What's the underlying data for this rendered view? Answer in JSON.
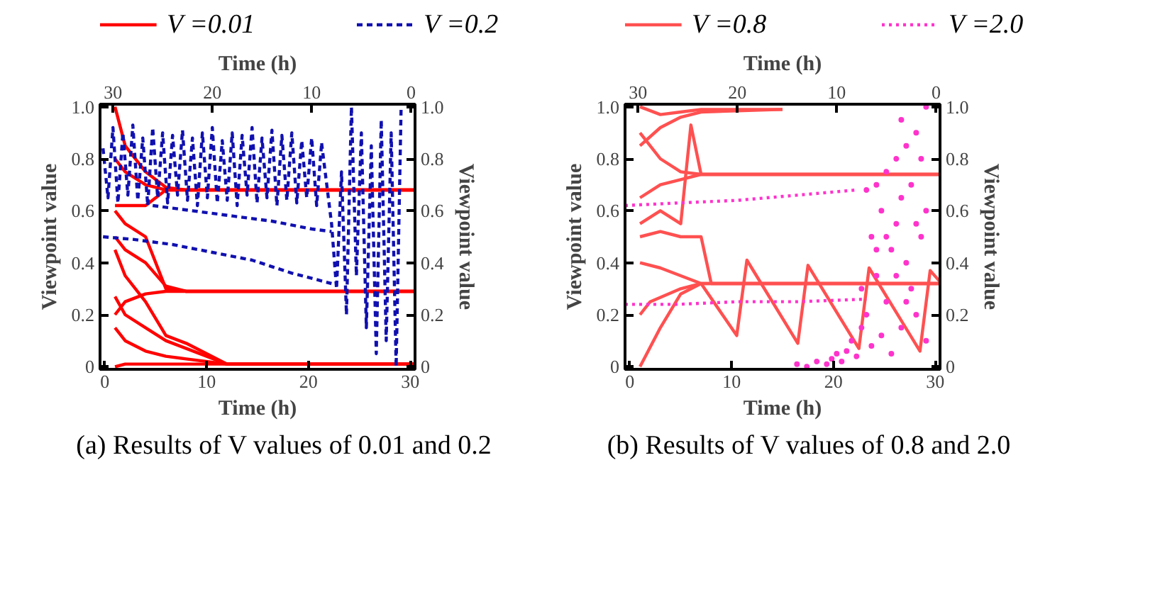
{
  "chart_data": [
    {
      "type": "line",
      "xlabel": "Time (h)",
      "x2label": "Time (h)",
      "ylabel": "Viewpoint value",
      "y2label": "Viewpoint value",
      "xlim": [
        -0.47,
        30.47
      ],
      "xticks": [
        0,
        10,
        20,
        30
      ],
      "x2lim": [
        31.3,
        -0.4
      ],
      "x2ticks": [
        30,
        20,
        10,
        0
      ],
      "ylim": [
        -0.01,
        1.01
      ],
      "yticks": [
        0,
        0.2,
        0.4,
        0.6,
        0.8,
        {
          "value": 1,
          "label": "1.0"
        }
      ],
      "y2lim": [
        -0.01,
        1.01
      ],
      "y2ticks": [
        0,
        0.2,
        0.4,
        0.6,
        0.8,
        {
          "value": 1,
          "label": "1.0"
        }
      ],
      "legend": "top",
      "grid": false,
      "annotations": [
        "(a) Results of V values of 0.01 and 0.2"
      ],
      "series": [
        {
          "name": "V =0.01",
          "color": "#ff0000",
          "line_style": "solid",
          "x": [
            1,
            2,
            4,
            6,
            8,
            12,
            30.4
          ],
          "values": [
            1.0,
            0.85,
            0.75,
            0.69,
            0.68,
            0.68,
            0.68
          ]
        },
        {
          "color": "#ff0000",
          "line_style": "solid",
          "x": [
            1,
            2,
            4,
            6,
            8,
            12,
            30.4
          ],
          "values": [
            0.62,
            0.62,
            0.62,
            0.68,
            0.68,
            0.68,
            0.68
          ]
        },
        {
          "color": "#ff0000",
          "line_style": "solid",
          "x": [
            1,
            2,
            4,
            6,
            8,
            12,
            30.4
          ],
          "values": [
            0.8,
            0.75,
            0.7,
            0.68,
            0.68,
            0.68,
            0.68
          ]
        },
        {
          "color": "#ff0000",
          "line_style": "solid",
          "x": [
            1,
            2,
            4,
            6,
            8,
            12,
            30.4
          ],
          "values": [
            0.6,
            0.55,
            0.5,
            0.3,
            0.29,
            0.29,
            0.29
          ]
        },
        {
          "color": "#ff0000",
          "line_style": "solid",
          "x": [
            1,
            2,
            4,
            6,
            8,
            12,
            30.4
          ],
          "values": [
            0.5,
            0.45,
            0.4,
            0.31,
            0.29,
            0.29,
            0.29
          ]
        },
        {
          "color": "#ff0000",
          "line_style": "solid",
          "x": [
            1,
            2,
            4,
            6,
            8,
            12,
            30.4
          ],
          "values": [
            0.2,
            0.25,
            0.28,
            0.29,
            0.29,
            0.29,
            0.29
          ]
        },
        {
          "color": "#ff0000",
          "line_style": "solid",
          "x": [
            1,
            2,
            4,
            6,
            8,
            12,
            30.4
          ],
          "values": [
            0.45,
            0.35,
            0.25,
            0.12,
            0.09,
            0.01,
            0.01
          ]
        },
        {
          "color": "#ff0000",
          "line_style": "solid",
          "x": [
            1,
            2,
            4,
            6,
            8,
            12,
            30.4
          ],
          "values": [
            0.27,
            0.2,
            0.15,
            0.1,
            0.07,
            0.01,
            0.01
          ]
        },
        {
          "color": "#ff0000",
          "line_style": "solid",
          "x": [
            1,
            2,
            4,
            6,
            8,
            12,
            30.4
          ],
          "values": [
            0.15,
            0.1,
            0.06,
            0.04,
            0.03,
            0.01,
            0.01
          ]
        },
        {
          "color": "#ff0000",
          "line_style": "solid",
          "x": [
            1,
            2,
            4,
            6,
            8,
            12,
            30.4
          ],
          "values": [
            0.0,
            0.01,
            0.01,
            0.01,
            0.01,
            0.01,
            0.01
          ]
        },
        {
          "name": "V =0.2",
          "color": "#1010b0",
          "line_style": "dashed",
          "axis": "x2",
          "x": [
            31,
            28,
            24,
            20,
            16,
            12,
            9,
            8
          ],
          "values": [
            0.5,
            0.49,
            0.47,
            0.44,
            0.41,
            0.36,
            0.33,
            0.32
          ]
        },
        {
          "color": "#1010b0",
          "line_style": "dashed",
          "axis": "x2",
          "x": [
            26,
            22,
            18,
            14,
            10,
            8
          ],
          "values": [
            0.62,
            0.6,
            0.58,
            0.56,
            0.53,
            0.52
          ]
        },
        {
          "color": "#1010b0",
          "line_style": "dashed",
          "axis": "x2",
          "x": [
            31,
            30.5,
            30,
            29.5,
            29,
            28.5,
            28,
            27.5,
            27,
            26.5,
            26,
            25.5,
            25,
            24.5,
            24,
            23.5,
            23,
            22.5,
            22,
            21.5,
            21,
            20.5,
            20,
            19.5,
            19,
            18.5,
            18,
            17.5,
            17,
            16.5,
            16,
            15.5,
            15,
            14.5,
            14,
            13.5,
            13,
            12.5,
            12,
            11.5,
            11,
            10.5,
            10,
            9.5,
            9
          ],
          "values": [
            0.84,
            0.65,
            0.92,
            0.63,
            0.9,
            0.66,
            0.93,
            0.64,
            0.88,
            0.62,
            0.92,
            0.65,
            0.9,
            0.63,
            0.89,
            0.66,
            0.91,
            0.64,
            0.88,
            0.62,
            0.9,
            0.65,
            0.92,
            0.63,
            0.87,
            0.64,
            0.9,
            0.62,
            0.89,
            0.66,
            0.92,
            0.63,
            0.88,
            0.65,
            0.91,
            0.62,
            0.89,
            0.64,
            0.9,
            0.63,
            0.87,
            0.65,
            0.88,
            0.62,
            0.86
          ]
        },
        {
          "color": "#1010b0",
          "line_style": "dashed",
          "axis": "x2",
          "x": [
            9,
            8,
            7.5,
            7,
            6.5,
            6,
            5.5,
            5,
            4.5,
            4,
            3.5,
            3,
            2.5,
            2,
            1.5,
            1
          ],
          "values": [
            0.86,
            0.55,
            0.3,
            0.75,
            0.2,
            1.0,
            0.35,
            0.9,
            0.15,
            0.85,
            0.05,
            0.95,
            0.1,
            0.9,
            0.0,
            1.0
          ]
        }
      ]
    },
    {
      "type": "line",
      "xlabel": "Time (h)",
      "x2label": "Time (h)",
      "ylabel": "Viewpoint value",
      "y2label": "Viewpoint value",
      "xlim": [
        -0.47,
        30.47
      ],
      "xticks": [
        0,
        10,
        20,
        30
      ],
      "x2lim": [
        31.3,
        -0.4
      ],
      "x2ticks": [
        30,
        20,
        10,
        0
      ],
      "ylim": [
        -0.01,
        1.01
      ],
      "yticks": [
        0,
        0.2,
        0.4,
        0.6,
        0.8,
        {
          "value": 1,
          "label": "1.0"
        }
      ],
      "y2lim": [
        -0.01,
        1.01
      ],
      "y2ticks": [
        0,
        0.2,
        0.4,
        0.6,
        0.8,
        {
          "value": 1,
          "label": "1.0"
        }
      ],
      "legend": "top",
      "grid": false,
      "annotations": [
        "(b) Results of V values of 0.8 and 2.0"
      ],
      "series": [
        {
          "name": "V =0.8",
          "color": "#ff5050",
          "line_style": "solid",
          "x": [
            1,
            3,
            5,
            7,
            15
          ],
          "values": [
            1.0,
            0.97,
            0.98,
            0.99,
            0.99
          ]
        },
        {
          "color": "#ff5050",
          "line_style": "solid",
          "x": [
            1,
            3,
            5,
            7,
            15
          ],
          "values": [
            0.85,
            0.92,
            0.96,
            0.98,
            0.99
          ]
        },
        {
          "color": "#ff5050",
          "line_style": "solid",
          "x": [
            1,
            3,
            5,
            7,
            30.4
          ],
          "values": [
            0.9,
            0.8,
            0.75,
            0.74,
            0.74
          ]
        },
        {
          "color": "#ff5050",
          "line_style": "solid",
          "x": [
            1,
            3,
            5,
            6,
            7,
            30.4
          ],
          "values": [
            0.55,
            0.6,
            0.55,
            0.93,
            0.74,
            0.74
          ]
        },
        {
          "color": "#ff5050",
          "line_style": "solid",
          "x": [
            1,
            3,
            5,
            7,
            30.4
          ],
          "values": [
            0.65,
            0.7,
            0.72,
            0.74,
            0.74
          ]
        },
        {
          "color": "#ff5050",
          "line_style": "solid",
          "x": [
            1,
            3,
            5,
            7,
            8,
            30.4
          ],
          "values": [
            0.5,
            0.52,
            0.5,
            0.5,
            0.32,
            0.32
          ]
        },
        {
          "color": "#ff5050",
          "line_style": "solid",
          "x": [
            1,
            3,
            5,
            7,
            30.4
          ],
          "values": [
            0.4,
            0.38,
            0.35,
            0.32,
            0.32
          ]
        },
        {
          "color": "#ff5050",
          "line_style": "solid",
          "x": [
            1,
            3,
            5,
            7,
            30.4
          ],
          "values": [
            0.0,
            0.15,
            0.28,
            0.32,
            0.32
          ]
        },
        {
          "color": "#ff5050",
          "line_style": "solid",
          "x": [
            1,
            2,
            5,
            7
          ],
          "values": [
            0.2,
            0.25,
            0.3,
            0.32
          ]
        },
        {
          "color": "#ff5050",
          "line_style": "solid",
          "x": [
            7,
            10.5,
            11.5,
            16.5,
            17.5,
            22.5,
            23.5,
            28.5,
            29.5,
            30.4
          ],
          "values": [
            0.32,
            0.12,
            0.41,
            0.09,
            0.39,
            0.07,
            0.38,
            0.06,
            0.37,
            0.33
          ]
        },
        {
          "name": "V =2.0",
          "color": "#ff33cc",
          "line_style": "dotted",
          "axis": "x2",
          "x": [
            31.3,
            26,
            20,
            14,
            8
          ],
          "values": [
            0.62,
            0.63,
            0.64,
            0.66,
            0.68
          ]
        },
        {
          "color": "#ff33cc",
          "line_style": "dotted",
          "axis": "x2",
          "x": [
            31.3,
            26,
            20,
            14,
            7
          ],
          "values": [
            0.24,
            0.24,
            0.25,
            0.25,
            0.26
          ]
        },
        {
          "type": "scatter",
          "marker": "circle",
          "color": "#ff33cc",
          "axis": "x2",
          "x": [
            14,
            13,
            12,
            11,
            10.5,
            10,
            9.5,
            9,
            8.5,
            8,
            7.5,
            7.5,
            7,
            7,
            6.5,
            6.5,
            6,
            6,
            5.5,
            5.5,
            5,
            5,
            4.5,
            4.5,
            4,
            4,
            3.5,
            3.5,
            3,
            3,
            2.5,
            2.5,
            2,
            2,
            1.5,
            1.5,
            1,
            1,
            1,
            6,
            4,
            3,
            2,
            5,
            3.5
          ],
          "values": [
            0.01,
            0.0,
            0.02,
            0.01,
            0.03,
            0.05,
            0.02,
            0.06,
            0.1,
            0.04,
            0.15,
            0.3,
            0.68,
            0.2,
            0.5,
            0.08,
            0.7,
            0.35,
            0.12,
            0.6,
            0.75,
            0.25,
            0.45,
            0.05,
            0.8,
            0.55,
            0.15,
            0.65,
            0.85,
            0.4,
            0.3,
            0.7,
            0.9,
            0.2,
            0.5,
            0.8,
            1.0,
            0.1,
            0.6,
            0.45,
            0.35,
            0.25,
            0.55,
            0.5,
            0.95
          ]
        }
      ]
    }
  ]
}
